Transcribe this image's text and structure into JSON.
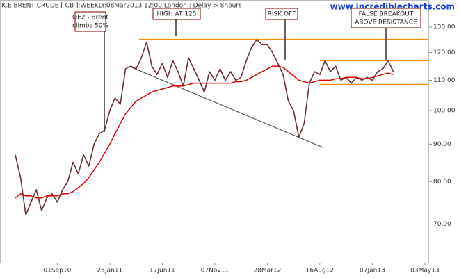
{
  "chart_data": {
    "type": "line",
    "title": "ICE BRENT CRUDE [ CB ]:WEEKLY:08Mar2013 12:00 London : Delay > 8hours",
    "watermark": "www.incrediblecharts.com",
    "categories": [
      null,
      null,
      null,
      null,
      null,
      null,
      null,
      null,
      "01Sep10",
      null,
      null,
      null,
      null,
      null,
      null,
      null,
      null,
      null,
      "25Jan11",
      null,
      null,
      null,
      null,
      null,
      null,
      null,
      null,
      null,
      "17Jun11",
      null,
      null,
      null,
      null,
      null,
      null,
      null,
      null,
      null,
      "07Nov11",
      null,
      null,
      null,
      null,
      null,
      null,
      null,
      null,
      null,
      "28Mar12",
      null,
      null,
      null,
      null,
      null,
      null,
      null,
      null,
      null,
      "16Aug12",
      null,
      null,
      null,
      null,
      null,
      null,
      null,
      null,
      null,
      "07Jan13",
      null,
      null,
      null,
      null,
      null,
      null,
      null,
      null,
      null,
      "03May13"
    ],
    "series": [
      {
        "color": "#6b2f2f",
        "values": [
          87,
          81,
          72,
          75,
          78,
          73,
          76,
          77,
          75,
          78,
          80,
          85,
          82,
          87,
          84,
          90,
          93,
          94,
          100,
          104,
          102,
          114,
          115,
          114,
          118,
          124,
          115,
          112,
          116,
          111,
          117,
          113,
          108,
          118,
          114,
          110,
          106,
          113,
          110,
          114,
          110,
          113,
          110,
          111,
          117,
          122,
          125,
          123,
          123,
          120,
          116,
          112,
          103,
          100,
          92,
          96,
          109,
          113,
          112,
          117,
          113,
          115,
          110,
          111,
          109,
          111,
          110,
          111,
          110,
          113,
          114,
          117,
          113,
          null,
          null,
          null,
          null,
          null,
          null
        ]
      },
      {
        "color": "#e00000",
        "values": [
          76,
          77,
          76.5,
          76.5,
          76,
          76,
          76.5,
          76.5,
          76.5,
          77,
          77,
          77.5,
          78.5,
          79.5,
          81,
          83,
          85,
          87.5,
          90,
          93,
          96,
          99,
          101,
          103,
          104,
          105,
          106,
          106.5,
          107,
          107.5,
          108,
          108,
          108,
          108.5,
          109,
          109,
          109,
          109,
          109,
          109,
          109,
          109,
          109.5,
          109.5,
          110,
          111,
          112,
          113,
          114,
          115,
          115,
          114.5,
          113,
          111.5,
          110,
          109.5,
          109,
          109.5,
          110,
          110,
          110,
          110.5,
          110.5,
          111,
          111,
          111,
          110.5,
          110.5,
          111,
          111.5,
          112,
          112.5,
          112,
          null,
          null,
          null,
          null,
          null,
          null
        ]
      }
    ],
    "hlines": [
      {
        "value": 125,
        "color": "#ff8c00"
      },
      {
        "value": 117,
        "color": "#ff8c00"
      },
      {
        "value": 108.5,
        "color": "#ff8c00"
      }
    ],
    "trendline": {
      "values": [
        115,
        89
      ],
      "color": "#555555"
    },
    "annotations": [
      {
        "lines": [
          "QE2 - Brent",
          "climbs 50%"
        ]
      },
      {
        "lines": [
          "HIGH AT 125"
        ]
      },
      {
        "lines": [
          "RISK OFF"
        ]
      },
      {
        "lines": [
          "FALSE BREAKOUT",
          "ABOVE RESISTANCE"
        ]
      }
    ],
    "ylim": [
      62,
      140
    ],
    "log_y": true,
    "yticks": [
      {
        "value": 70,
        "label": "70.00"
      },
      {
        "value": 80,
        "label": "80.00"
      },
      {
        "value": 90,
        "label": "90.00"
      },
      {
        "value": 100,
        "label": "100.00"
      },
      {
        "value": 110,
        "label": "110.00"
      },
      {
        "value": 120,
        "label": "120.00"
      },
      {
        "value": 130,
        "label": "130.00"
      }
    ]
  }
}
